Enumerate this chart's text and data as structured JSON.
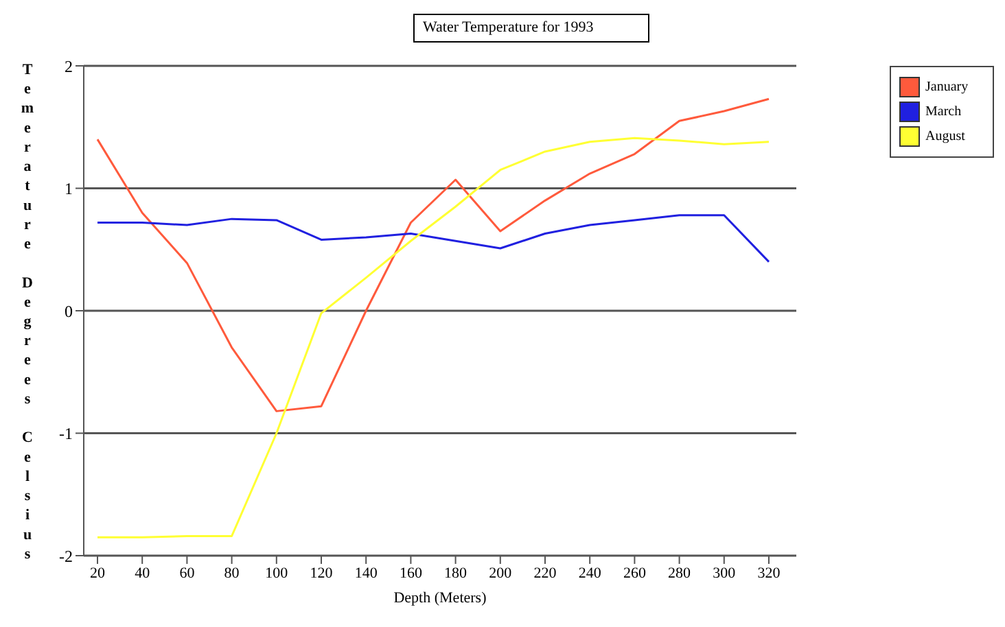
{
  "chart_data": {
    "type": "line",
    "title": "Water Temperature for 1993",
    "xlabel": "Depth (Meters)",
    "ylabel": "Temerature Degrees Celsius",
    "categories": [
      "20",
      "40",
      "60",
      "80",
      "100",
      "120",
      "140",
      "160",
      "180",
      "200",
      "220",
      "240",
      "260",
      "280",
      "300",
      "320"
    ],
    "series": [
      {
        "name": "January",
        "color": "#ff5a3c",
        "values": [
          1.4,
          0.8,
          0.39,
          -0.3,
          -0.82,
          -0.78,
          0.0,
          0.72,
          1.07,
          0.65,
          0.9,
          1.12,
          1.28,
          1.55,
          1.63,
          1.73
        ]
      },
      {
        "name": "March",
        "color": "#2020e0",
        "values": [
          0.72,
          0.72,
          0.7,
          0.75,
          0.74,
          0.58,
          0.6,
          0.63,
          0.57,
          0.51,
          0.63,
          0.7,
          0.74,
          0.78,
          0.78,
          0.4
        ]
      },
      {
        "name": "August",
        "color": "#ffff33",
        "values": [
          -1.85,
          -1.85,
          -1.84,
          -1.84,
          -1.0,
          -0.02,
          0.27,
          0.57,
          0.85,
          1.15,
          1.3,
          1.38,
          1.41,
          1.39,
          1.36,
          1.38
        ]
      }
    ],
    "ylim": [
      -2,
      2
    ],
    "yticks": [
      -2,
      -1,
      0,
      1,
      2
    ],
    "grid": "y",
    "legend": "top right",
    "marker": "none",
    "line_style": "solid"
  }
}
